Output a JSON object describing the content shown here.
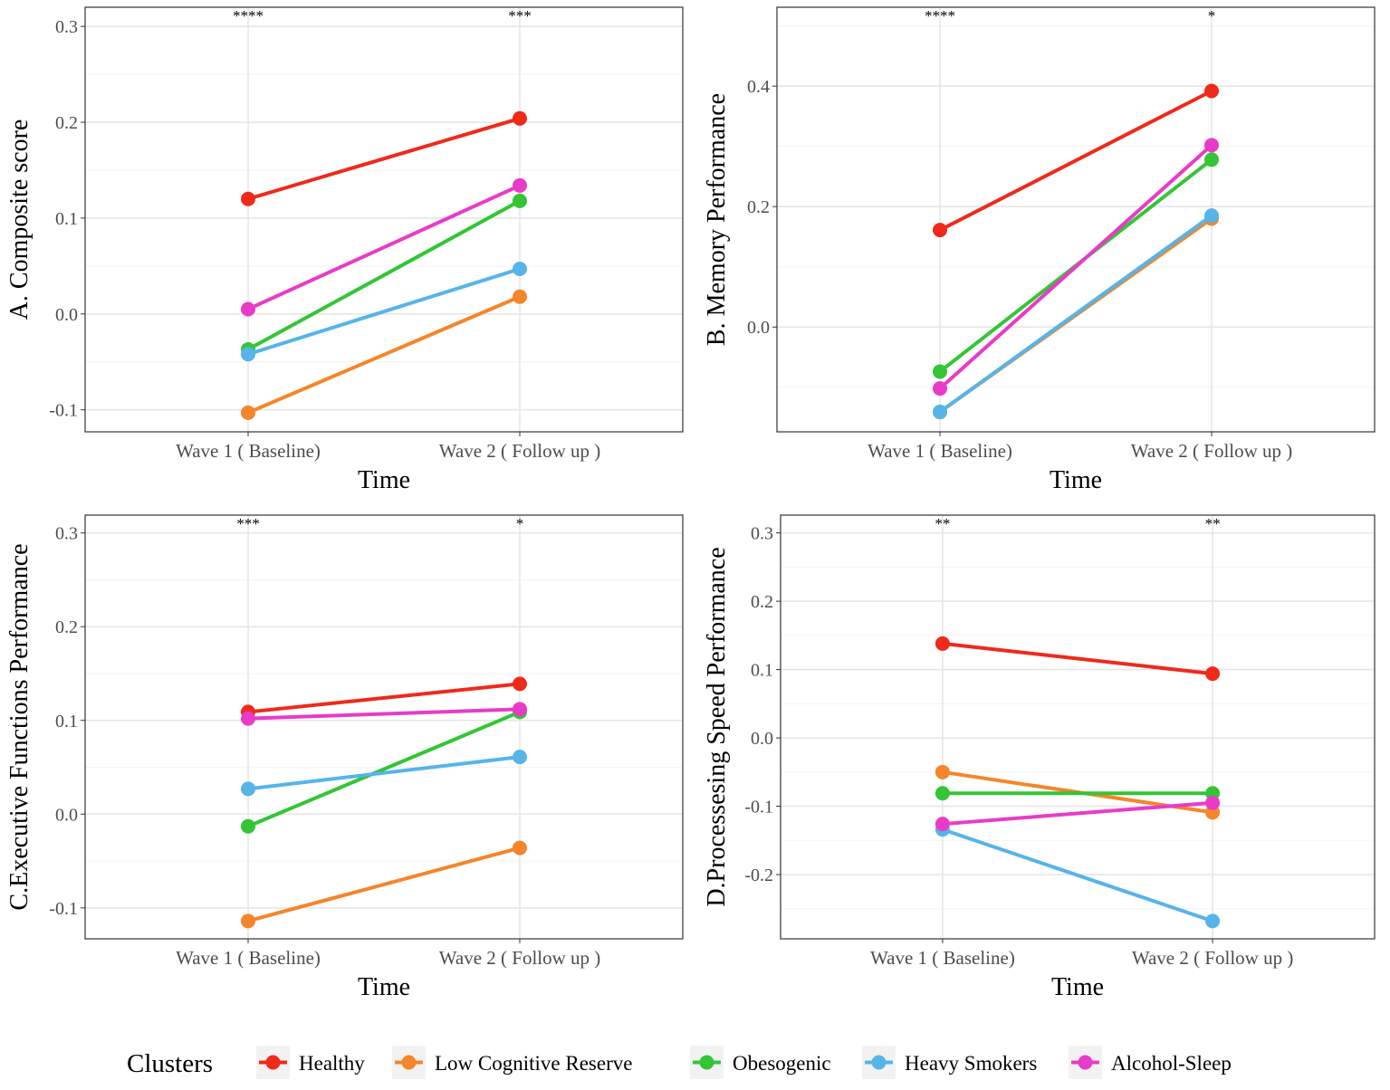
{
  "chart_data": [
    {
      "type": "line",
      "ylabel": "A. Composite score",
      "xlabel": "Time",
      "categories": [
        "Wave 1 ( Baseline)",
        "Wave 2 ( Follow up )"
      ],
      "ylim": [
        -0.123,
        0.32
      ],
      "yticks": [
        -0.1,
        0.0,
        0.1,
        0.2,
        0.3
      ],
      "significance": [
        "****",
        "***"
      ],
      "series": [
        {
          "name": "Healthy",
          "values": [
            0.12,
            0.204
          ]
        },
        {
          "name": "Low Cognitive Reserve",
          "values": [
            -0.103,
            0.018
          ]
        },
        {
          "name": "Obesogenic",
          "values": [
            -0.037,
            0.118
          ]
        },
        {
          "name": "Heavy Smokers",
          "values": [
            -0.042,
            0.047
          ]
        },
        {
          "name": "Alcohol-Sleep",
          "values": [
            0.005,
            0.134
          ]
        }
      ]
    },
    {
      "type": "line",
      "ylabel": "B. Memory Performance",
      "xlabel": "Time",
      "categories": [
        "Wave 1 ( Baseline)",
        "Wave 2 ( Follow up )"
      ],
      "ylim": [
        -0.174,
        0.531
      ],
      "yticks": [
        0.0,
        0.2,
        0.4
      ],
      "significance": [
        "****",
        "*"
      ],
      "series": [
        {
          "name": "Healthy",
          "values": [
            0.161,
            0.392
          ]
        },
        {
          "name": "Low Cognitive Reserve",
          "values": [
            -0.141,
            0.18
          ]
        },
        {
          "name": "Obesogenic",
          "values": [
            -0.074,
            0.278
          ]
        },
        {
          "name": "Heavy Smokers",
          "values": [
            -0.141,
            0.185
          ]
        },
        {
          "name": "Alcohol-Sleep",
          "values": [
            -0.102,
            0.302
          ]
        }
      ]
    },
    {
      "type": "line",
      "ylabel": "C.Executive Functions Performance",
      "xlabel": "Time",
      "categories": [
        "Wave 1 ( Baseline)",
        "Wave 2 ( Follow up )"
      ],
      "ylim": [
        -0.133,
        0.319
      ],
      "yticks": [
        -0.1,
        0.0,
        0.1,
        0.2,
        0.3
      ],
      "significance": [
        "***",
        "*"
      ],
      "series": [
        {
          "name": "Healthy",
          "values": [
            0.109,
            0.139
          ]
        },
        {
          "name": "Low Cognitive Reserve",
          "values": [
            -0.114,
            -0.036
          ]
        },
        {
          "name": "Obesogenic",
          "values": [
            -0.013,
            0.109
          ]
        },
        {
          "name": "Heavy Smokers",
          "values": [
            0.027,
            0.061
          ]
        },
        {
          "name": "Alcohol-Sleep",
          "values": [
            0.102,
            0.112
          ]
        }
      ]
    },
    {
      "type": "line",
      "ylabel": "D.Processesing Speed Performance",
      "xlabel": "Time",
      "categories": [
        "Wave 1 ( Baseline)",
        "Wave 2 ( Follow up )"
      ],
      "ylim": [
        -0.294,
        0.326
      ],
      "yticks": [
        -0.2,
        -0.1,
        0.0,
        0.1,
        0.2,
        0.3
      ],
      "significance": [
        "**",
        "**"
      ],
      "series": [
        {
          "name": "Healthy",
          "values": [
            0.138,
            0.094
          ]
        },
        {
          "name": "Low Cognitive Reserve",
          "values": [
            -0.05,
            -0.109
          ]
        },
        {
          "name": "Obesogenic",
          "values": [
            -0.081,
            -0.081
          ]
        },
        {
          "name": "Heavy Smokers",
          "values": [
            -0.134,
            -0.268
          ]
        },
        {
          "name": "Alcohol-Sleep",
          "values": [
            -0.126,
            -0.095
          ]
        }
      ]
    }
  ],
  "legend": {
    "title": "Clusters",
    "position": "bottom",
    "items": [
      {
        "label": "Healthy",
        "color": "#EE2A1B"
      },
      {
        "label": "Low Cognitive Reserve",
        "color": "#F5852A"
      },
      {
        "label": "Obesogenic",
        "color": "#33C535"
      },
      {
        "label": "Heavy Smokers",
        "color": "#56B4E9"
      },
      {
        "label": "Alcohol-Sleep",
        "color": "#E83BC8"
      }
    ]
  }
}
